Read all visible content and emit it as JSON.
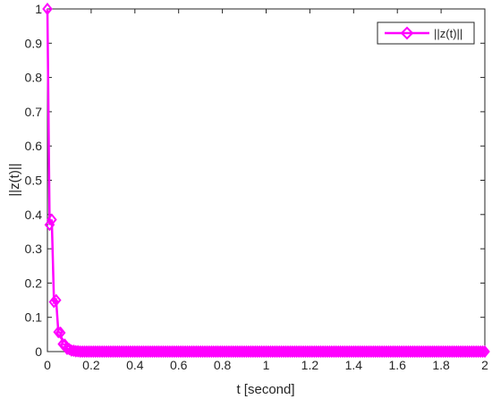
{
  "chart_data": {
    "type": "line",
    "xlabel": "t [second]",
    "ylabel": "||z(t)||",
    "xlim": [
      0,
      2
    ],
    "ylim": [
      0,
      1
    ],
    "xticks": [
      "0",
      "0.2",
      "0.4",
      "0.6",
      "0.8",
      "1",
      "1.2",
      "1.4",
      "1.6",
      "1.8",
      "2"
    ],
    "yticks": [
      "0",
      "0.1",
      "0.2",
      "0.3",
      "0.4",
      "0.5",
      "0.6",
      "0.7",
      "0.8",
      "0.9",
      "1"
    ],
    "grid": false,
    "legend_position": "top-right",
    "series": [
      {
        "name": "||z(t)||",
        "color": "#ff00ff",
        "marker": "diamond",
        "x_start": 0,
        "x_step": 0.01,
        "values": [
          1,
          0.37,
          0.385,
          0.145,
          0.15,
          0.057,
          0.055,
          0.022,
          0.02,
          0.008,
          0.007,
          0.003,
          0.0025,
          0.001,
          0.001
        ]
      }
    ]
  }
}
